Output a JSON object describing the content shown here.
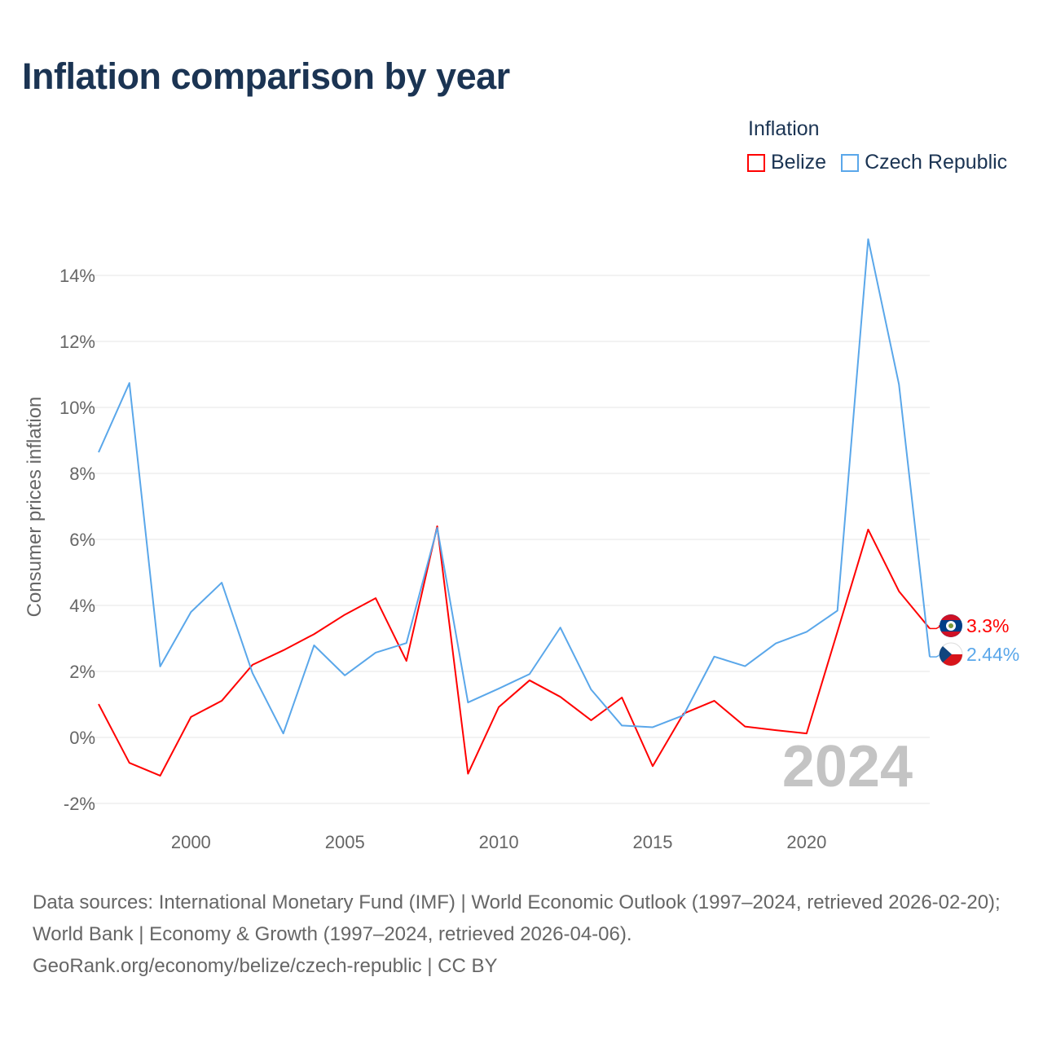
{
  "title": "Inflation comparison by year",
  "legend": {
    "title": "Inflation",
    "items": [
      {
        "label": "Belize",
        "color": "#ff0000"
      },
      {
        "label": "Czech Republic",
        "color": "#5aa7ea"
      }
    ]
  },
  "watermark_year": "2024",
  "footer": {
    "line1": "Data sources: International Monetary Fund (IMF) | World Economic Outlook (1997–2024, retrieved 2026-02-20); World Bank | Economy & Growth (1997–2024, retrieved 2026-04-06).",
    "line2": "GeoRank.org/economy/belize/czech-republic | CC BY"
  },
  "chart_data": {
    "type": "line",
    "title": "Inflation comparison by year",
    "xlabel": "",
    "ylabel": "Consumer prices inflation",
    "x": [
      1997,
      1998,
      1999,
      2000,
      2001,
      2002,
      2003,
      2004,
      2005,
      2006,
      2007,
      2008,
      2009,
      2010,
      2011,
      2012,
      2013,
      2014,
      2015,
      2016,
      2017,
      2018,
      2019,
      2020,
      2021,
      2022,
      2023,
      2024
    ],
    "xlim": [
      1997,
      2024
    ],
    "ylim": [
      -2.5,
      15.5
    ],
    "xticks": [
      2000,
      2005,
      2010,
      2015,
      2020
    ],
    "yticks": [
      -2,
      0,
      2,
      4,
      6,
      8,
      10,
      12,
      14
    ],
    "ytick_labels": [
      "-2%",
      "0%",
      "2%",
      "4%",
      "6%",
      "8%",
      "10%",
      "12%",
      "14%"
    ],
    "grid": true,
    "legend_position": "top-right",
    "series": [
      {
        "name": "Belize",
        "color": "#ff0000",
        "end_label": "3.3%",
        "values": [
          1.01,
          -0.77,
          -1.16,
          0.62,
          1.11,
          2.2,
          2.64,
          3.13,
          3.72,
          4.22,
          2.32,
          6.4,
          -1.1,
          0.92,
          1.73,
          1.23,
          0.52,
          1.21,
          -0.87,
          0.72,
          1.11,
          0.33,
          0.22,
          0.12,
          3.2,
          6.3,
          4.43,
          3.3
        ]
      },
      {
        "name": "Czech Republic",
        "color": "#5aa7ea",
        "end_label": "2.44%",
        "values": [
          8.64,
          10.74,
          2.15,
          3.8,
          4.69,
          1.95,
          0.12,
          2.79,
          1.88,
          2.57,
          2.86,
          6.35,
          1.06,
          1.48,
          1.92,
          3.33,
          1.45,
          0.36,
          0.31,
          0.67,
          2.45,
          2.16,
          2.85,
          3.2,
          3.84,
          15.1,
          10.7,
          2.44
        ]
      }
    ]
  }
}
